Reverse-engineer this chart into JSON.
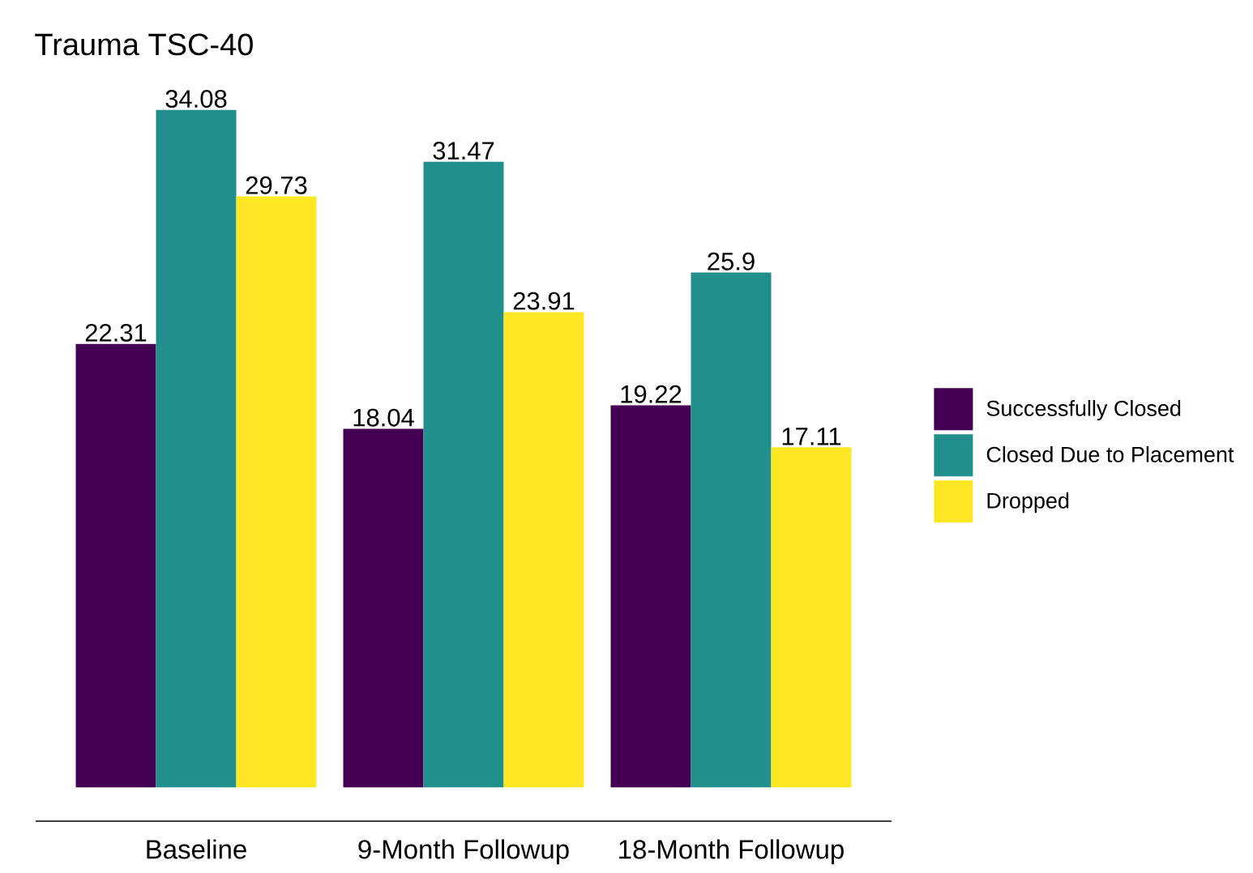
{
  "chart_data": {
    "type": "bar",
    "title": "Trauma TSC-40",
    "categories": [
      "Baseline",
      "9-Month Followup",
      "18-Month Followup"
    ],
    "series": [
      {
        "name": "Successfully Closed",
        "color": "#440154",
        "values": [
          22.31,
          18.04,
          19.22
        ]
      },
      {
        "name": "Closed Due to Placement",
        "color": "#21908C",
        "values": [
          34.08,
          31.47,
          25.9
        ]
      },
      {
        "name": "Dropped",
        "color": "#FDE725",
        "values": [
          29.73,
          23.91,
          17.11
        ]
      }
    ],
    "data_labels": true,
    "legend": "right",
    "tick_labels": "x"
  }
}
